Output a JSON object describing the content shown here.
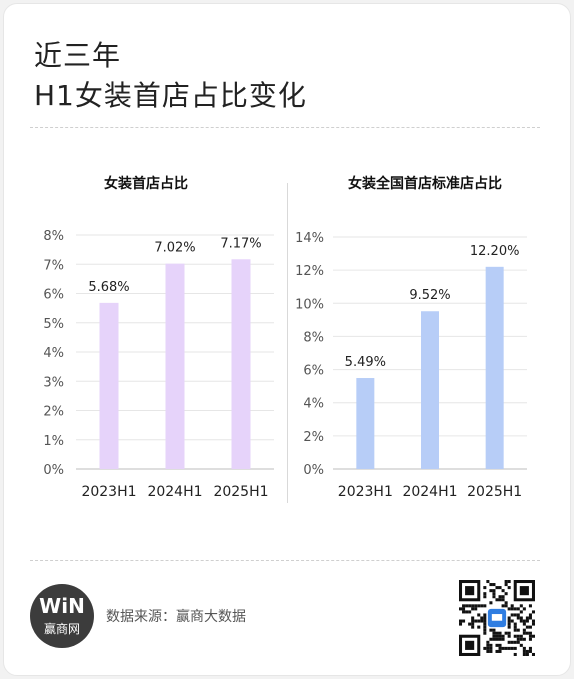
{
  "header": {
    "title_line1": "近三年",
    "title_line2": "H1女装首店占比变化"
  },
  "chart_data": [
    {
      "type": "bar",
      "title": "女装首店占比",
      "categories": [
        "2023H1",
        "2024H1",
        "2025H1"
      ],
      "values": [
        5.68,
        7.02,
        7.17
      ],
      "data_labels": [
        "5.68%",
        "7.02%",
        "7.17%"
      ],
      "yticks": [
        "0%",
        "1%",
        "2%",
        "3%",
        "4%",
        "5%",
        "6%",
        "7%",
        "8%"
      ],
      "ylim": [
        0,
        8
      ],
      "color": "#e6d3fa",
      "grid": true
    },
    {
      "type": "bar",
      "title": "女装全国首店标准店占比",
      "categories": [
        "2023H1",
        "2024H1",
        "2025H1"
      ],
      "values": [
        5.49,
        9.52,
        12.2
      ],
      "data_labels": [
        "5.49%",
        "9.52%",
        "12.20%"
      ],
      "yticks": [
        "0%",
        "2%",
        "4%",
        "6%",
        "8%",
        "10%",
        "12%",
        "14%"
      ],
      "ylim": [
        0,
        14
      ],
      "color": "#b7cdf7",
      "grid": true
    }
  ],
  "footer": {
    "logo_mark": "WiN",
    "logo_text": "赢商网",
    "source": "数据来源：赢商大数据",
    "qr_icon": "qr-code-icon"
  }
}
